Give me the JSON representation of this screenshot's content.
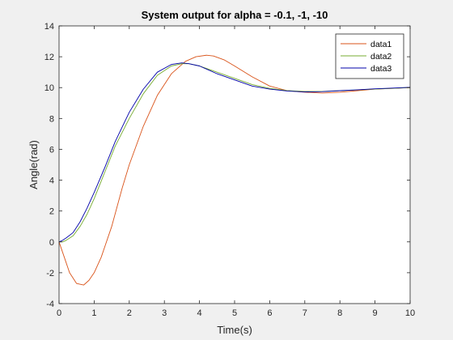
{
  "chart_data": {
    "type": "line",
    "title": "System output for alpha = -0.1, -1, -10",
    "xlabel": "Time(s)",
    "ylabel": "Angle(rad)",
    "xlim": [
      0,
      10
    ],
    "ylim": [
      -4,
      14
    ],
    "xticks": [
      0,
      1,
      2,
      3,
      4,
      5,
      6,
      7,
      8,
      9,
      10
    ],
    "yticks": [
      -4,
      -2,
      0,
      2,
      4,
      6,
      8,
      10,
      12,
      14
    ],
    "grid": false,
    "legend_position": "top-right",
    "series": [
      {
        "name": "data1",
        "color": "#d95319",
        "x": [
          0,
          0.15,
          0.3,
          0.5,
          0.7,
          0.85,
          1.0,
          1.2,
          1.5,
          1.8,
          2.0,
          2.4,
          2.8,
          3.2,
          3.6,
          3.9,
          4.2,
          4.4,
          4.7,
          5.0,
          5.5,
          6.0,
          6.5,
          7.0,
          7.5,
          8.0,
          8.5,
          9.0,
          9.5,
          10.0
        ],
        "y": [
          0,
          -1.0,
          -2.0,
          -2.7,
          -2.8,
          -2.5,
          -2.0,
          -1.0,
          1.0,
          3.5,
          5.0,
          7.5,
          9.5,
          10.9,
          11.7,
          12.0,
          12.1,
          12.05,
          11.8,
          11.4,
          10.7,
          10.1,
          9.8,
          9.7,
          9.65,
          9.7,
          9.8,
          9.9,
          9.95,
          10.0
        ]
      },
      {
        "name": "data2",
        "color": "#77ac30",
        "x": [
          0,
          0.1,
          0.2,
          0.4,
          0.6,
          0.8,
          1.0,
          1.3,
          1.6,
          2.0,
          2.4,
          2.8,
          3.2,
          3.5,
          3.7,
          4.0,
          4.5,
          5.0,
          5.5,
          6.0,
          6.5,
          7.0,
          7.5,
          8.0,
          8.5,
          9.0,
          9.5,
          10.0
        ],
        "y": [
          0,
          0.0,
          0.1,
          0.4,
          1.0,
          1.8,
          2.8,
          4.5,
          6.2,
          8.0,
          9.6,
          10.8,
          11.4,
          11.55,
          11.55,
          11.4,
          11.0,
          10.6,
          10.2,
          9.95,
          9.8,
          9.75,
          9.75,
          9.8,
          9.85,
          9.9,
          9.95,
          10.0
        ]
      },
      {
        "name": "data3",
        "color": "#0000aa",
        "x": [
          0,
          0.1,
          0.2,
          0.4,
          0.6,
          0.8,
          1.0,
          1.3,
          1.6,
          2.0,
          2.4,
          2.8,
          3.2,
          3.5,
          3.7,
          4.0,
          4.5,
          5.0,
          5.5,
          6.0,
          6.5,
          7.0,
          7.5,
          8.0,
          8.5,
          9.0,
          9.5,
          10.0
        ],
        "y": [
          0,
          0.1,
          0.25,
          0.6,
          1.3,
          2.2,
          3.2,
          4.8,
          6.5,
          8.4,
          9.9,
          11.0,
          11.5,
          11.6,
          11.55,
          11.4,
          10.9,
          10.5,
          10.1,
          9.9,
          9.78,
          9.72,
          9.74,
          9.8,
          9.86,
          9.92,
          9.97,
          10.02
        ]
      }
    ]
  }
}
